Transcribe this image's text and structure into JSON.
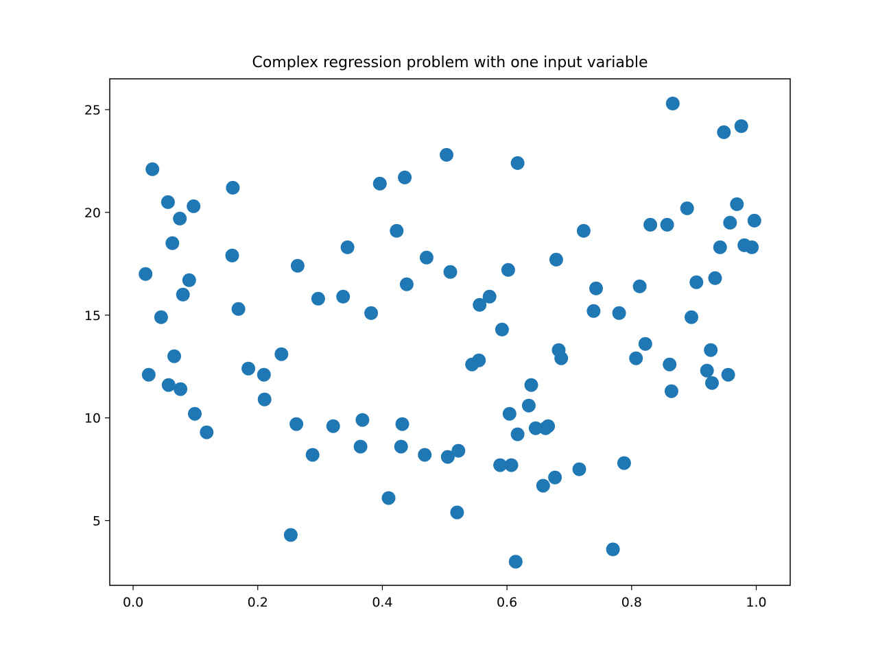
{
  "chart_data": {
    "type": "scatter",
    "title": "Complex regression problem with one input variable",
    "xlabel": "",
    "ylabel": "",
    "xlim": [
      -0.0375,
      1.0545
    ],
    "ylim": [
      1.85,
      26.5
    ],
    "x_ticks": [
      0.0,
      0.2,
      0.4,
      0.6,
      0.8,
      1.0
    ],
    "x_tick_labels": [
      "0.0",
      "0.2",
      "0.4",
      "0.6",
      "0.8",
      "1.0"
    ],
    "y_ticks": [
      5,
      10,
      15,
      20,
      25
    ],
    "y_tick_labels": [
      "5",
      "10",
      "15",
      "20",
      "25"
    ],
    "grid": false,
    "legend": "none",
    "marker_color": "#1f77b4",
    "series": [
      {
        "points": [
          [
            0.02,
            17.0
          ],
          [
            0.025,
            12.1
          ],
          [
            0.031,
            22.1
          ],
          [
            0.045,
            14.9
          ],
          [
            0.056,
            20.5
          ],
          [
            0.057,
            11.6
          ],
          [
            0.063,
            18.5
          ],
          [
            0.066,
            13.0
          ],
          [
            0.075,
            19.7
          ],
          [
            0.076,
            11.4
          ],
          [
            0.08,
            16.0
          ],
          [
            0.09,
            16.7
          ],
          [
            0.097,
            20.3
          ],
          [
            0.099,
            10.2
          ],
          [
            0.118,
            9.3
          ],
          [
            0.159,
            17.9
          ],
          [
            0.16,
            21.2
          ],
          [
            0.169,
            15.3
          ],
          [
            0.185,
            12.4
          ],
          [
            0.21,
            12.1
          ],
          [
            0.211,
            10.9
          ],
          [
            0.238,
            13.1
          ],
          [
            0.253,
            4.3
          ],
          [
            0.262,
            9.7
          ],
          [
            0.264,
            17.4
          ],
          [
            0.288,
            8.2
          ],
          [
            0.297,
            15.8
          ],
          [
            0.321,
            9.6
          ],
          [
            0.337,
            15.9
          ],
          [
            0.344,
            18.3
          ],
          [
            0.365,
            8.6
          ],
          [
            0.368,
            9.9
          ],
          [
            0.382,
            15.1
          ],
          [
            0.396,
            21.4
          ],
          [
            0.41,
            6.1
          ],
          [
            0.423,
            19.1
          ],
          [
            0.43,
            8.6
          ],
          [
            0.432,
            9.7
          ],
          [
            0.436,
            21.7
          ],
          [
            0.439,
            16.5
          ],
          [
            0.468,
            8.2
          ],
          [
            0.471,
            17.8
          ],
          [
            0.503,
            22.8
          ],
          [
            0.505,
            8.1
          ],
          [
            0.509,
            17.1
          ],
          [
            0.52,
            5.4
          ],
          [
            0.522,
            8.4
          ],
          [
            0.544,
            12.6
          ],
          [
            0.555,
            12.8
          ],
          [
            0.556,
            15.5
          ],
          [
            0.572,
            15.9
          ],
          [
            0.589,
            7.7
          ],
          [
            0.592,
            14.3
          ],
          [
            0.602,
            17.2
          ],
          [
            0.604,
            10.2
          ],
          [
            0.607,
            7.7
          ],
          [
            0.614,
            3.0
          ],
          [
            0.617,
            22.4
          ],
          [
            0.617,
            9.2
          ],
          [
            0.635,
            10.6
          ],
          [
            0.639,
            11.6
          ],
          [
            0.646,
            9.5
          ],
          [
            0.658,
            6.7
          ],
          [
            0.662,
            9.5
          ],
          [
            0.666,
            9.6
          ],
          [
            0.677,
            7.1
          ],
          [
            0.679,
            17.7
          ],
          [
            0.683,
            13.3
          ],
          [
            0.687,
            12.9
          ],
          [
            0.716,
            7.5
          ],
          [
            0.723,
            19.1
          ],
          [
            0.739,
            15.2
          ],
          [
            0.743,
            16.3
          ],
          [
            0.77,
            3.6
          ],
          [
            0.78,
            15.1
          ],
          [
            0.788,
            7.8
          ],
          [
            0.807,
            12.9
          ],
          [
            0.813,
            16.4
          ],
          [
            0.822,
            13.6
          ],
          [
            0.83,
            19.4
          ],
          [
            0.857,
            19.4
          ],
          [
            0.861,
            12.6
          ],
          [
            0.864,
            11.3
          ],
          [
            0.866,
            25.3
          ],
          [
            0.889,
            20.2
          ],
          [
            0.896,
            14.9
          ],
          [
            0.904,
            16.6
          ],
          [
            0.921,
            12.3
          ],
          [
            0.927,
            13.3
          ],
          [
            0.929,
            11.7
          ],
          [
            0.934,
            16.8
          ],
          [
            0.942,
            18.3
          ],
          [
            0.948,
            23.9
          ],
          [
            0.955,
            12.1
          ],
          [
            0.958,
            19.5
          ],
          [
            0.969,
            20.4
          ],
          [
            0.976,
            24.2
          ],
          [
            0.981,
            18.4
          ],
          [
            0.993,
            18.3
          ],
          [
            0.997,
            19.6
          ]
        ]
      }
    ]
  }
}
